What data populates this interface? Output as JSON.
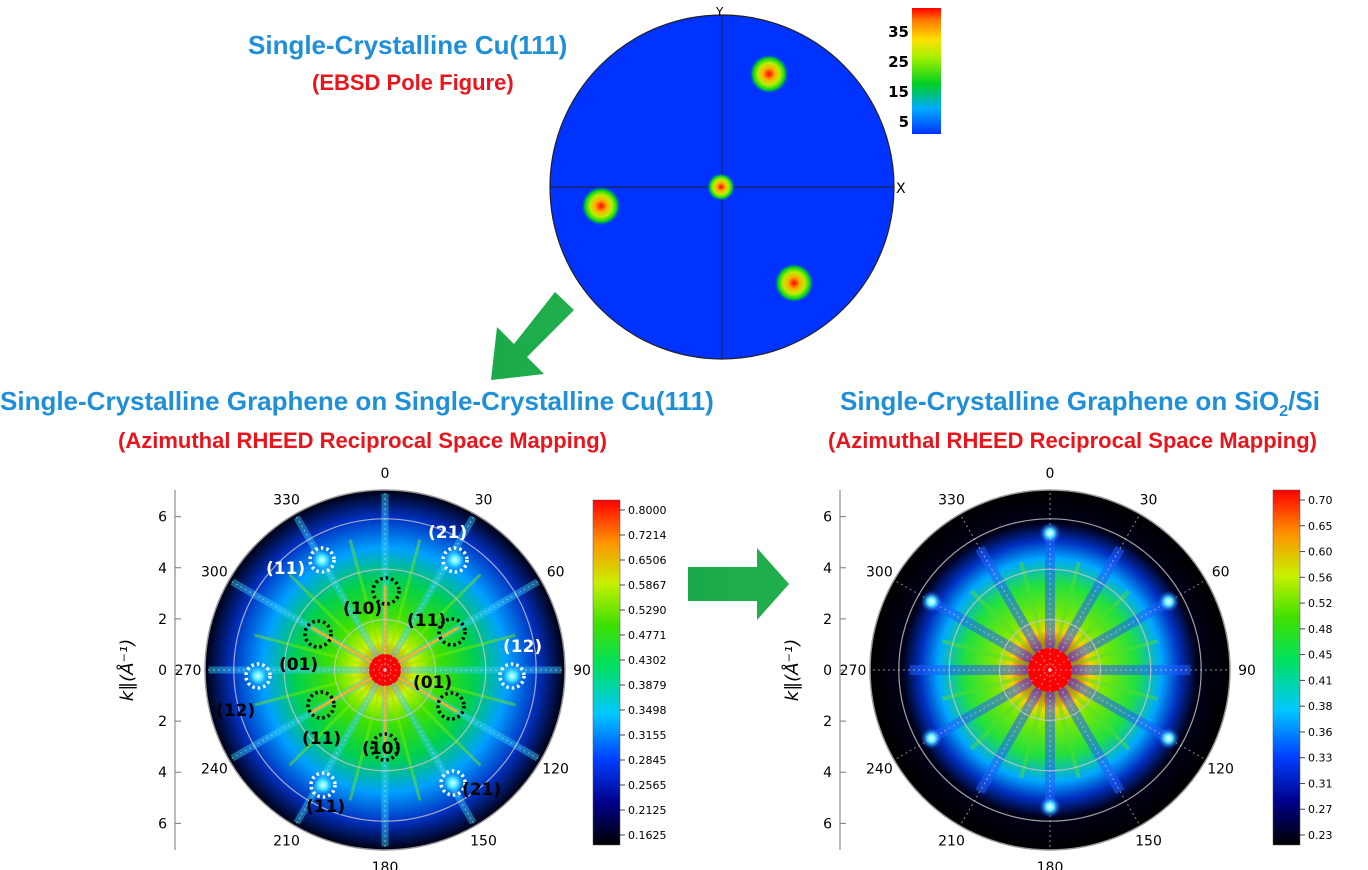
{
  "top": {
    "title": "Single-Crystalline Cu(111)",
    "subtitle": "(EBSD Pole Figure)",
    "axis_y": "Y",
    "axis_x": "X",
    "colorbar_ticks": [
      "35",
      "25",
      "15",
      "5"
    ]
  },
  "left": {
    "title": "Single-Crystalline Graphene on Single-Crystalline Cu(111)",
    "subtitle": "(Azimuthal RHEED Reciprocal Space Mapping)",
    "colorbar_ticks": [
      "0.8000",
      "0.7214",
      "0.6506",
      "0.5867",
      "0.5290",
      "0.4771",
      "0.4302",
      "0.3879",
      "0.3498",
      "0.3155",
      "0.2845",
      "0.2565",
      "0.2125",
      "0.1625"
    ],
    "spot_labels_inner": [
      "(10)",
      "(11)",
      "(01)",
      "(01)",
      "(10)",
      "(11)"
    ],
    "spot_labels_outer": [
      "(21)",
      "(11)",
      "(12)",
      "(12)",
      "(21)",
      "(11)"
    ]
  },
  "right": {
    "title_prefix": "Single-Crystalline Graphene on SiO",
    "title_sub": "2",
    "title_suffix": "/Si",
    "subtitle": "(Azimuthal RHEED Reciprocal Space Mapping)",
    "colorbar_ticks": [
      "0.70",
      "0.65",
      "0.60",
      "0.56",
      "0.52",
      "0.48",
      "0.45",
      "0.41",
      "0.38",
      "0.36",
      "0.33",
      "0.31",
      "0.27",
      "0.23"
    ]
  },
  "polar": {
    "angle_labels": [
      "0",
      "30",
      "60",
      "90",
      "120",
      "150",
      "180",
      "210",
      "240",
      "270",
      "300",
      "330"
    ],
    "radial_ticks": [
      "6",
      "4",
      "2",
      "0",
      "2",
      "4",
      "6"
    ],
    "ylabel": "k∥(Å⁻¹)"
  },
  "colors": {
    "blue_title": "#1f8fd8",
    "red_title": "#e8161c",
    "arrow": "#1aa84a",
    "pole_bg": "#0033ff"
  }
}
